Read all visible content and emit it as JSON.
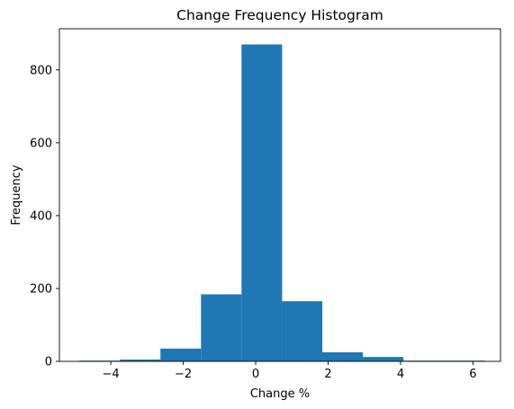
{
  "chart_data": {
    "type": "bar",
    "title": "Change Frequency Histogram",
    "xlabel": "Change %",
    "ylabel": "Frequency",
    "xlim": [
      -5.42,
      6.76
    ],
    "ylim": [
      0,
      913
    ],
    "bins": [
      {
        "x0": -4.87,
        "x1": -3.75,
        "value": 2
      },
      {
        "x0": -3.75,
        "x1": -2.63,
        "value": 5
      },
      {
        "x0": -2.63,
        "x1": -1.51,
        "value": 35
      },
      {
        "x0": -1.51,
        "x1": -0.39,
        "value": 184
      },
      {
        "x0": -0.39,
        "x1": 0.73,
        "value": 870
      },
      {
        "x0": 0.73,
        "x1": 1.84,
        "value": 165
      },
      {
        "x0": 1.84,
        "x1": 2.96,
        "value": 25
      },
      {
        "x0": 2.96,
        "x1": 4.08,
        "value": 12
      },
      {
        "x0": 4.08,
        "x1": 5.2,
        "value": 2
      },
      {
        "x0": 5.2,
        "x1": 6.32,
        "value": 2
      }
    ],
    "x_ticks": [
      -4,
      -2,
      0,
      2,
      4,
      6
    ],
    "x_tick_labels": [
      "−4",
      "−2",
      "0",
      "2",
      "4",
      "6"
    ],
    "y_ticks": [
      0,
      200,
      400,
      600,
      800
    ],
    "y_tick_labels": [
      "0",
      "200",
      "400",
      "600",
      "800"
    ],
    "bar_color": "#1f77b4",
    "grid": false,
    "legend": false
  }
}
